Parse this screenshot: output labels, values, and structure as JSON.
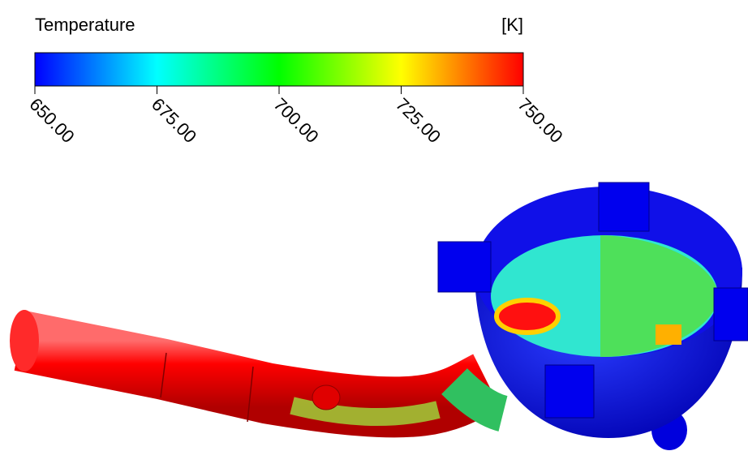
{
  "colorbar": {
    "title": "Temperature",
    "unit": "[K]",
    "range": [
      650,
      750
    ],
    "ticks": [
      {
        "value": 650,
        "label": "650.00"
      },
      {
        "value": 675,
        "label": "675.00"
      },
      {
        "value": 700,
        "label": "700.00"
      },
      {
        "value": 725,
        "label": "725.00"
      },
      {
        "value": 750,
        "label": "750.00"
      }
    ]
  }
}
